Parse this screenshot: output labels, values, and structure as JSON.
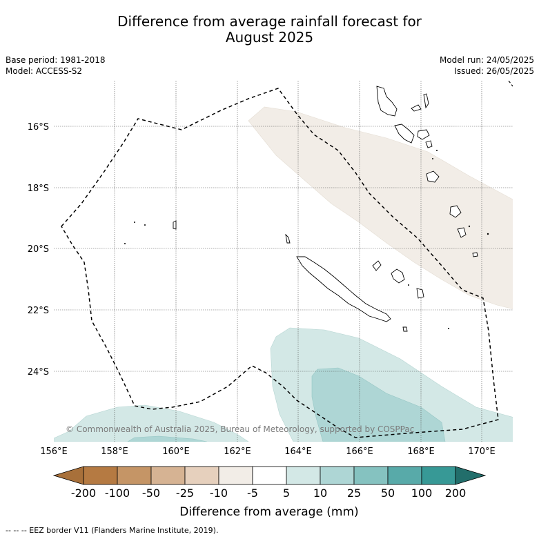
{
  "title": {
    "line1": "Difference from average rainfall forecast for",
    "line2": "August 2025"
  },
  "meta_left": {
    "base_period": "Base period: 1981-2018",
    "model": "Model: ACCESS-S2"
  },
  "meta_right": {
    "model_run": "Model run: 24/05/2025",
    "issued": "Issued: 26/05/2025"
  },
  "map": {
    "lon_range": [
      156,
      171
    ],
    "lat_range": [
      -26.1,
      -14.5
    ],
    "lat_ticks": [
      "16°S",
      "18°S",
      "20°S",
      "22°S",
      "24°S"
    ],
    "lon_ticks": [
      "156°E",
      "158°E",
      "160°E",
      "162°E",
      "164°E",
      "166°E",
      "168°E",
      "170°E"
    ],
    "copyright": "© Commonwealth of Australia 2025, Bureau of Meteorology, supported by COSPPac",
    "eez_style": "dashed black line",
    "anomaly_regions": [
      {
        "category": "-5 to -10",
        "color": "#f2ede7"
      },
      {
        "category": "5 to 10",
        "color": "#d3e8e6"
      },
      {
        "category": "10 to 25",
        "color": "#aed6d5"
      }
    ]
  },
  "colorbar": {
    "label": "Difference from average (mm)",
    "ticks": [
      "-200",
      "-100",
      "-50",
      "-25",
      "-10",
      "-5",
      "5",
      "10",
      "25",
      "50",
      "100",
      "200"
    ],
    "colors": [
      "#a8703a",
      "#b57a42",
      "#c59566",
      "#d6b393",
      "#e6d0bd",
      "#f2ede7",
      "#ffffff",
      "#d3e8e6",
      "#aed6d5",
      "#85c2c0",
      "#58aaa9",
      "#379996",
      "#226e6b"
    ]
  },
  "footer": "--  --  -- EEZ border V11 (Flanders Marine Institute, 2019)."
}
